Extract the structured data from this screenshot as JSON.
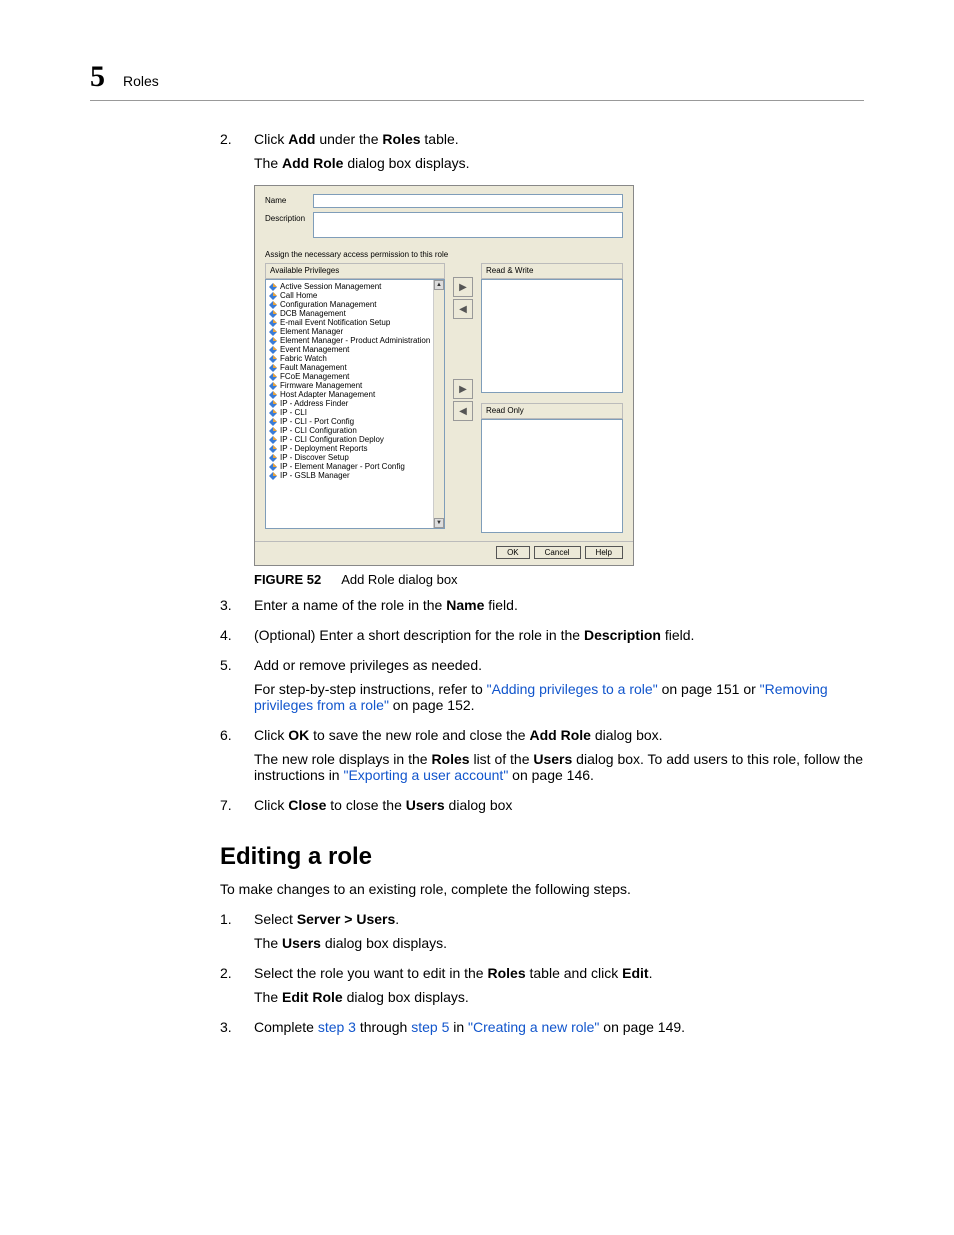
{
  "header": {
    "chapter_number": "5",
    "title": "Roles"
  },
  "steps_a": [
    {
      "num": "2.",
      "text_before": "Click ",
      "bold1": "Add",
      "text_mid": " under the ",
      "bold2": "Roles",
      "text_after": " table.",
      "sub": "The ",
      "sub_bold": "Add Role",
      "sub_after": " dialog box displays."
    }
  ],
  "figure": {
    "dialog": {
      "name_label": "Name",
      "desc_label": "Description",
      "instruction": "Assign the necessary access permission to this role",
      "available_header": "Available Privileges",
      "rw_header": "Read & Write",
      "ro_header": "Read Only",
      "privileges": [
        "Active Session Management",
        "Call Home",
        "Configuration Management",
        "DCB Management",
        "E-mail Event Notification Setup",
        "Element Manager",
        "Element Manager - Product Administration",
        "Event Management",
        "Fabric Watch",
        "Fault Management",
        "FCoE Management",
        "Firmware Management",
        "Host Adapter Management",
        "IP - Address Finder",
        "IP - CLI",
        "IP - CLI - Port Config",
        "IP - CLI Configuration",
        "IP - CLI Configuration Deploy",
        "IP - Deployment Reports",
        "IP - Discover Setup",
        "IP - Element Manager - Port Config",
        "IP - GSLB Manager"
      ],
      "buttons": {
        "ok": "OK",
        "cancel": "Cancel",
        "help": "Help"
      }
    },
    "caption_label": "FIGURE 52",
    "caption_text": "Add Role dialog box"
  },
  "steps_b": {
    "s3": {
      "num": "3.",
      "t1": "Enter a name of the role in the ",
      "b1": "Name",
      "t2": " field."
    },
    "s4": {
      "num": "4.",
      "t1": "(Optional) Enter a short description for the role in the ",
      "b1": "Description",
      "t2": " field."
    },
    "s5": {
      "num": "5.",
      "t1": "Add or remove privileges as needed.",
      "sub_t1": "For step-by-step instructions, refer to ",
      "link1": "\"Adding privileges to a role\"",
      "sub_t2": " on page 151 or ",
      "link2": "\"Removing privileges from a role\"",
      "sub_t3": " on page 152."
    },
    "s6": {
      "num": "6.",
      "t1": "Click ",
      "b1": "OK",
      "t2": " to save the new role and close the ",
      "b2": "Add Role",
      "t3": " dialog box.",
      "sub_t1": "The new role displays in the ",
      "b3": "Roles",
      "sub_t2": " list of the ",
      "b4": "Users",
      "sub_t3": " dialog box. To add users to this role, follow the instructions in ",
      "link1": "\"Exporting a user account\"",
      "sub_t4": " on page 146."
    },
    "s7": {
      "num": "7.",
      "t1": "Click ",
      "b1": "Close",
      "t2": " to close the ",
      "b2": "Users",
      "t3": " dialog box"
    }
  },
  "editing": {
    "heading": "Editing a role",
    "intro": "To make changes to an existing role, complete the following steps.",
    "s1": {
      "num": "1.",
      "t1": "Select ",
      "b1": "Server > Users",
      "t2": ".",
      "sub_t1": "The ",
      "b2": "Users",
      "sub_t2": " dialog box displays."
    },
    "s2": {
      "num": "2.",
      "t1": "Select the role you want to edit in the ",
      "b1": "Roles",
      "t2": " table and click ",
      "b2": "Edit",
      "t3": ".",
      "sub_t1": "The ",
      "b3": "Edit Role",
      "sub_t2": " dialog box displays."
    },
    "s3": {
      "num": "3.",
      "t1": "Complete ",
      "link1": "step 3",
      "t2": " through ",
      "link2": "step 5",
      "t3": " in ",
      "link3": "\"Creating a new role\"",
      "t4": " on page 149."
    }
  },
  "colors": {
    "link": "#1155cc",
    "dialog_bg": "#ece9d8",
    "icon_blue": "#3a7bd5",
    "icon_orange": "#e8a33d"
  }
}
